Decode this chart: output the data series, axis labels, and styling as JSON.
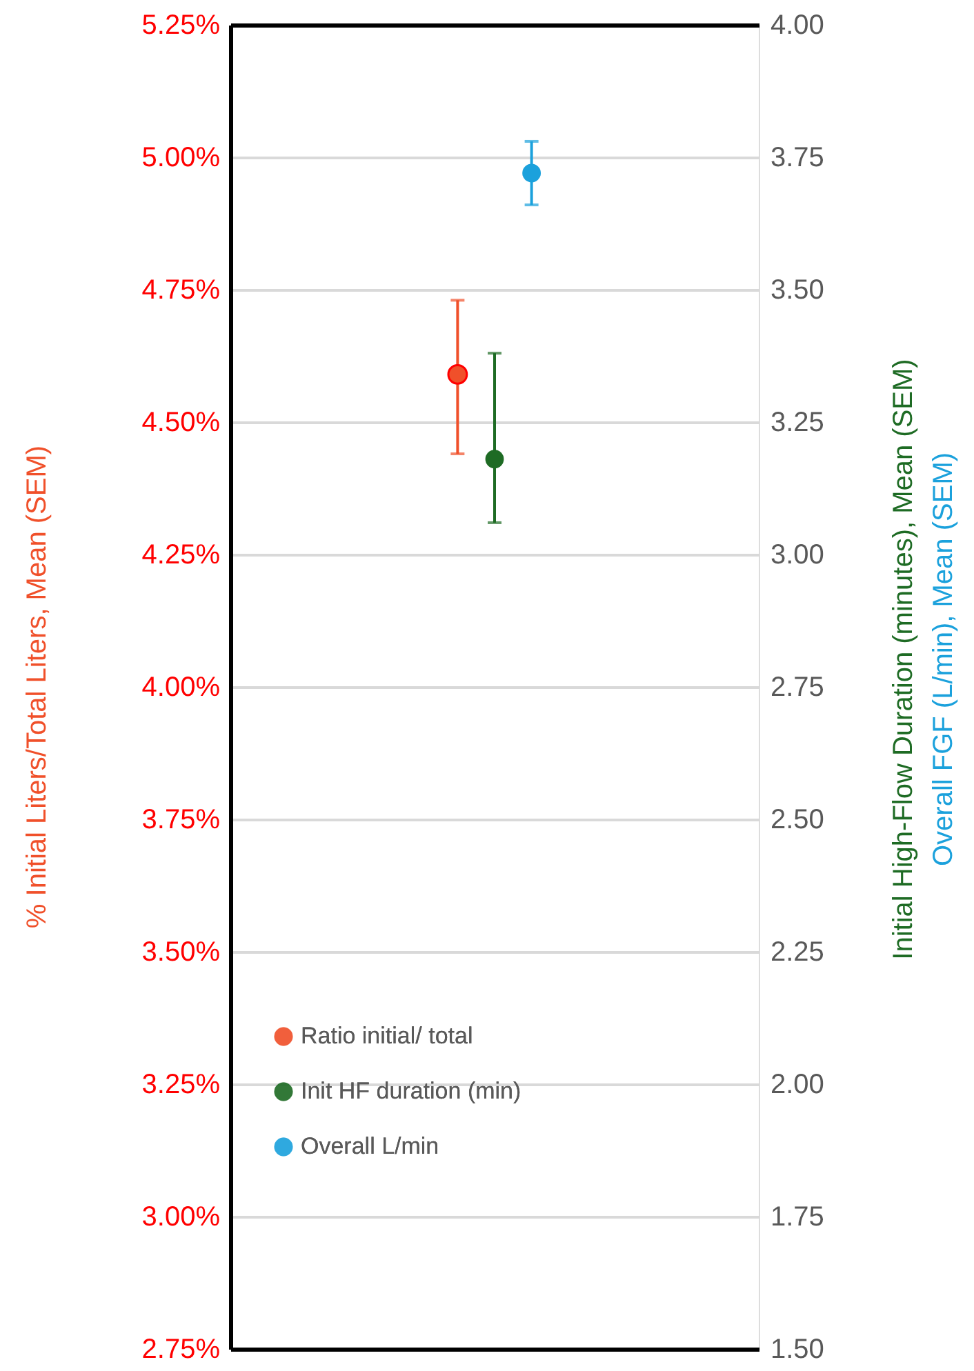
{
  "chart_data": {
    "type": "scatter",
    "categories": [
      null
    ],
    "series": [
      {
        "name": "Ratio initial/ total",
        "color": "#f0502a",
        "values": [
          4.59
        ],
        "errors": [
          [
            4.44,
            4.73
          ]
        ]
      },
      {
        "name": "Init HF duration (min)",
        "color": "#1e6b24",
        "values": [
          3.18
        ],
        "errors": [
          [
            3.06,
            3.38
          ]
        ],
        "axis": "y2"
      },
      {
        "name": "Overall L/min",
        "color": "#1ba1dc",
        "values": [
          3.72
        ],
        "errors": [
          [
            3.66,
            3.78
          ]
        ],
        "axis": "y2"
      }
    ],
    "ylabel": "% Initial Liters/Total Liters, Mean (SEM)",
    "y2label": [
      "Initial High-Flow Duration (minutes), Mean (SEM)",
      "Overall FGF (L/min), Mean (SEM)"
    ],
    "ylim": [
      2.75,
      5.25
    ],
    "yticks": [
      {
        "value": 2.75,
        "label": "2.75%"
      },
      {
        "value": 3.0,
        "label": "3.00%"
      },
      {
        "value": 3.25,
        "label": "3.25%"
      },
      {
        "value": 3.5,
        "label": "3.50%"
      },
      {
        "value": 3.75,
        "label": "3.75%"
      },
      {
        "value": 4.0,
        "label": "4.00%"
      },
      {
        "value": 4.25,
        "label": "4.25%"
      },
      {
        "value": 4.5,
        "label": "4.50%"
      },
      {
        "value": 4.75,
        "label": "4.75%"
      },
      {
        "value": 5.0,
        "label": "5.00%"
      },
      {
        "value": 5.25,
        "label": "5.25%"
      }
    ],
    "y2lim": [
      1.5,
      4.0
    ],
    "y2ticks": [
      {
        "value": 1.5,
        "label": "1.50"
      },
      {
        "value": 1.75,
        "label": "1.75"
      },
      {
        "value": 2.0,
        "label": "2.00"
      },
      {
        "value": 2.25,
        "label": "2.25"
      },
      {
        "value": 2.5,
        "label": "2.50"
      },
      {
        "value": 2.75,
        "label": "2.75"
      },
      {
        "value": 3.0,
        "label": "3.00"
      },
      {
        "value": 3.25,
        "label": "3.25"
      },
      {
        "value": 3.5,
        "label": "3.50"
      },
      {
        "value": 3.75,
        "label": "3.75"
      },
      {
        "value": 4.0,
        "label": "4.00"
      }
    ],
    "grid": "y",
    "legend": "bottom left",
    "marker": "circle",
    "tick_labels": "y"
  }
}
